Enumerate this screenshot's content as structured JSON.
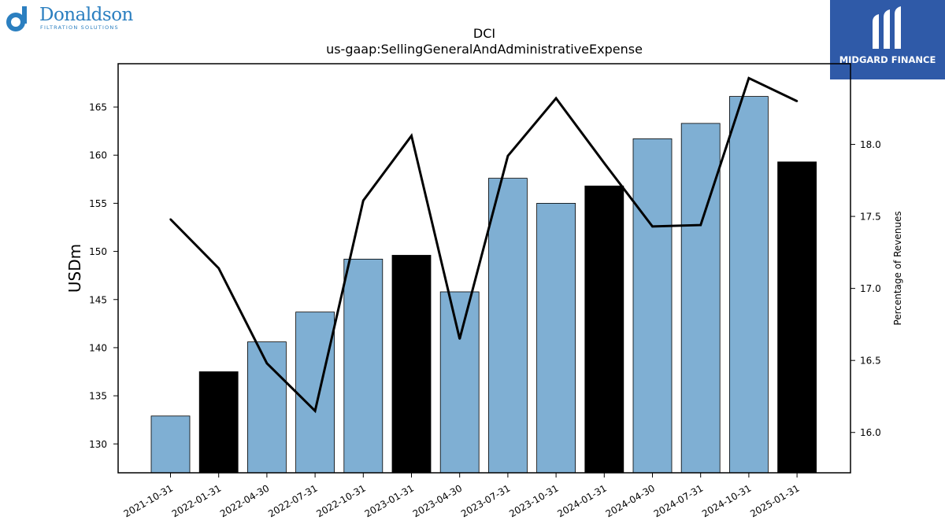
{
  "logos": {
    "left": {
      "brand": "Donaldson",
      "tagline": "FILTRATION SOLUTIONS"
    },
    "right": {
      "brand": "MIDGARD FINANCE"
    }
  },
  "colors": {
    "bar_default": "#7fafd3",
    "bar_highlight": "#000000",
    "line": "#000000"
  },
  "chart_data": {
    "type": "bar",
    "title": "DCI",
    "subtitle": "us-gaap:SellingGeneralAndAdministrativeExpense",
    "ylabel": "USDm",
    "y2label": "Percentage of Revenues",
    "categories": [
      "2021-10-31",
      "2022-01-31",
      "2022-04-30",
      "2022-07-31",
      "2022-10-31",
      "2023-01-31",
      "2023-04-30",
      "2023-07-31",
      "2023-10-31",
      "2024-01-31",
      "2024-04-30",
      "2024-07-31",
      "2024-10-31",
      "2025-01-31"
    ],
    "series": [
      {
        "type": "bar",
        "values": [
          132.9,
          137.5,
          140.6,
          143.7,
          149.2,
          149.6,
          145.8,
          157.6,
          155.0,
          156.8,
          161.7,
          163.3,
          166.1,
          159.3
        ],
        "highlight": [
          false,
          true,
          false,
          false,
          false,
          true,
          false,
          false,
          false,
          true,
          false,
          false,
          false,
          true
        ]
      },
      {
        "type": "line",
        "axis": "right",
        "values": [
          17.48,
          17.14,
          16.48,
          16.15,
          17.61,
          18.06,
          16.65,
          17.92,
          18.32,
          17.87,
          17.43,
          17.44,
          18.46,
          18.3
        ]
      }
    ],
    "ylim": [
      127,
      169.5
    ],
    "y2lim": [
      15.72,
      18.56
    ],
    "yticks": [
      130,
      135,
      140,
      145,
      150,
      155,
      160,
      165
    ],
    "y2ticks": [
      16.0,
      16.5,
      17.0,
      17.5,
      18.0
    ],
    "grid": false,
    "legend": "none"
  }
}
